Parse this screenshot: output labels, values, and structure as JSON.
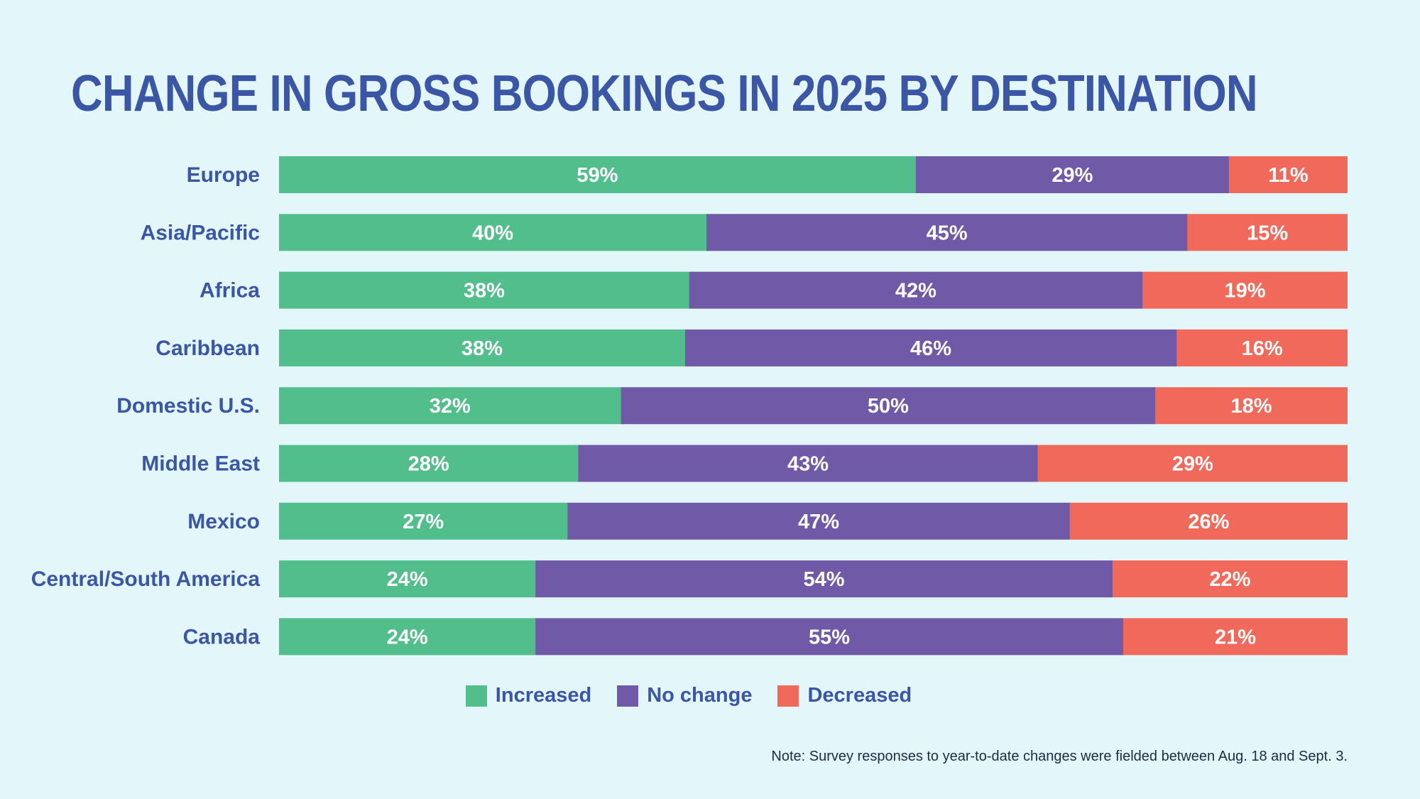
{
  "title": "CHANGE IN GROSS BOOKINGS IN 2025 BY DESTINATION",
  "note": "Note: Survey responses to year-to-date changes were fielded between Aug. 18 and Sept. 3.",
  "colors": {
    "background": "#e3f6fa",
    "title": "#3a56a5",
    "increased": "#52be8c",
    "no_change": "#7059a6",
    "decreased": "#f1695a"
  },
  "legend": [
    {
      "label": "Increased",
      "color": "#52be8c"
    },
    {
      "label": "No change",
      "color": "#7059a6"
    },
    {
      "label": "Decreased",
      "color": "#f1695a"
    }
  ],
  "chart_data": {
    "type": "bar",
    "orientation": "horizontal",
    "stacked": true,
    "unit": "%",
    "categories": [
      "Europe",
      "Asia/Pacific",
      "Africa",
      "Caribbean",
      "Domestic U.S.",
      "Middle East",
      "Mexico",
      "Central/South America",
      "Canada"
    ],
    "series": [
      {
        "name": "Increased",
        "color": "#52be8c",
        "values": [
          59,
          40,
          38,
          38,
          32,
          28,
          27,
          24,
          24
        ]
      },
      {
        "name": "No change",
        "color": "#7059a6",
        "values": [
          29,
          45,
          42,
          46,
          50,
          43,
          47,
          54,
          55
        ]
      },
      {
        "name": "Decreased",
        "color": "#f1695a",
        "values": [
          11,
          15,
          19,
          16,
          18,
          29,
          26,
          22,
          21
        ]
      }
    ],
    "legend_position": "bottom",
    "grid": false
  }
}
